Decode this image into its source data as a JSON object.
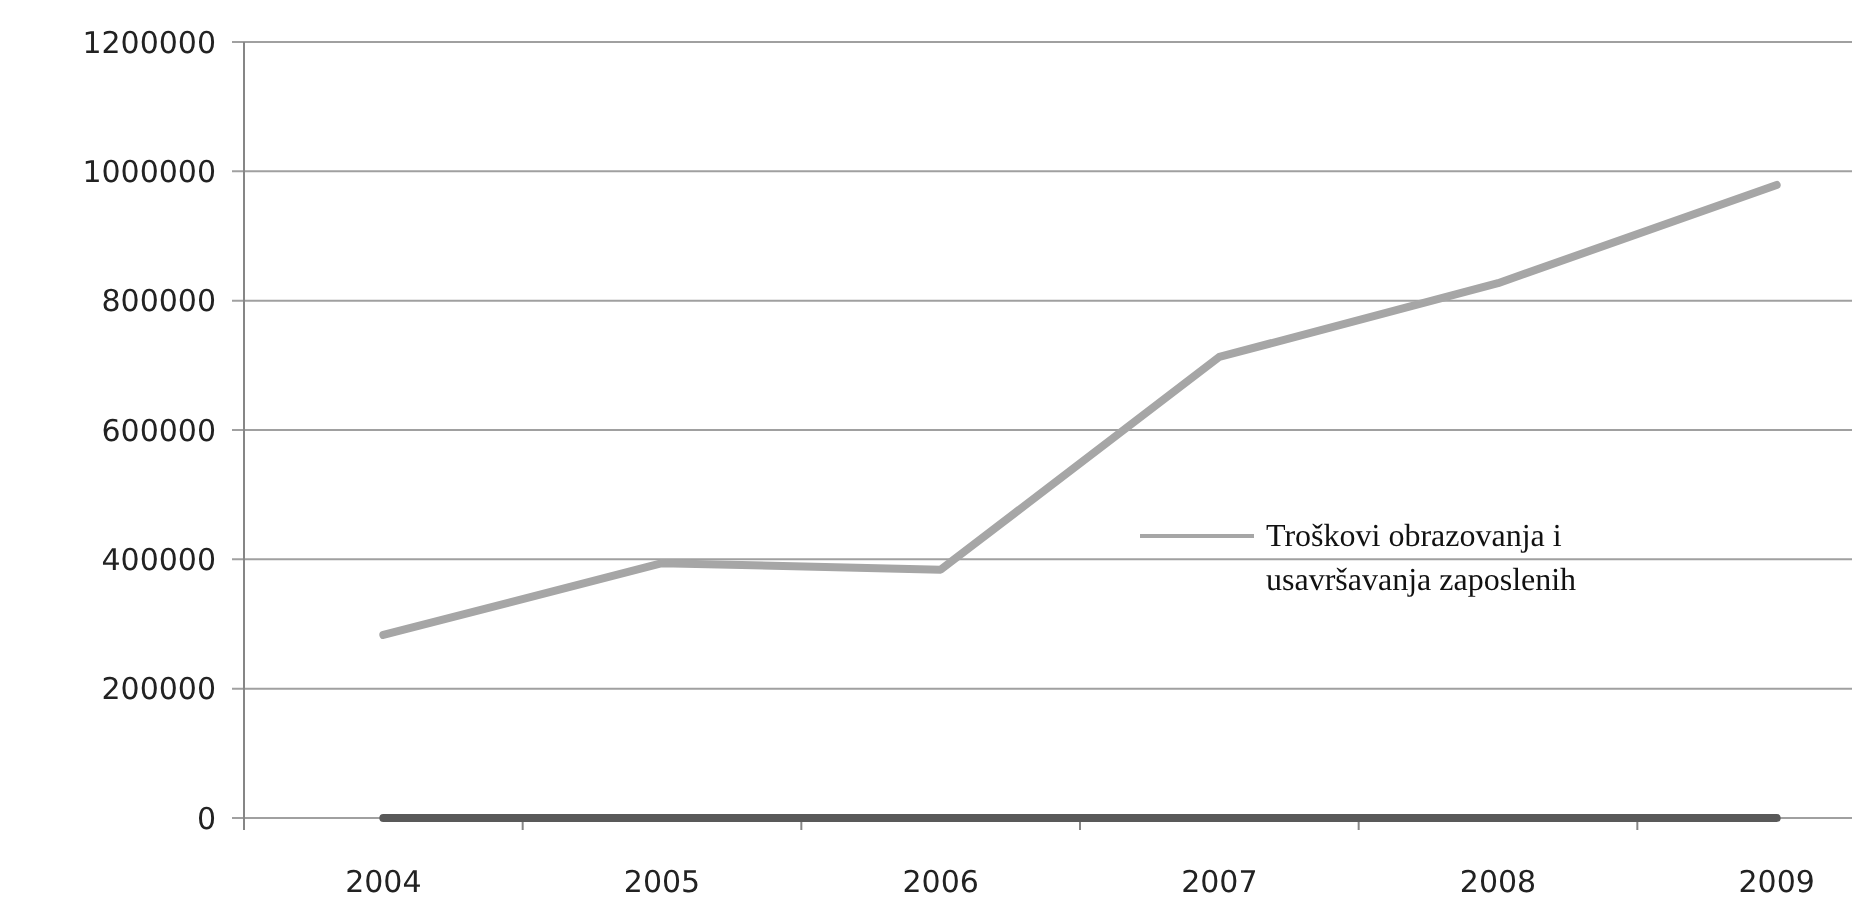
{
  "chart_data": {
    "type": "line",
    "categories": [
      "2004",
      "2005",
      "2006",
      "2007",
      "2008",
      "2009"
    ],
    "series": [
      {
        "name": "Troškovi obrazovanja i usavršavanja zaposlenih",
        "color": "#a6a6a6",
        "values": [
          283000,
          394000,
          384000,
          713000,
          827000,
          979000
        ]
      },
      {
        "color": "#595959",
        "values": [
          0,
          0,
          0,
          0,
          0,
          0
        ]
      }
    ],
    "ylim": [
      0,
      1200000
    ],
    "yticks": [
      0,
      200000,
      400000,
      600000,
      800000,
      1000000,
      1200000
    ],
    "grid": "y",
    "legend": "right",
    "marker": "none",
    "line_style": "solid"
  }
}
